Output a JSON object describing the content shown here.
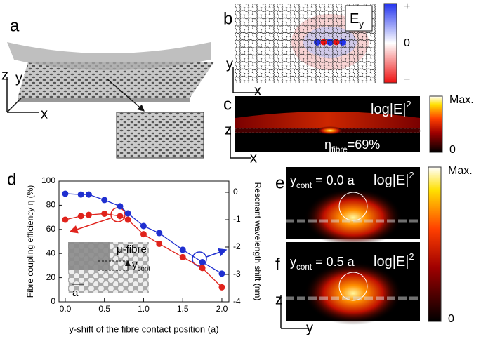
{
  "panel_labels": [
    "a",
    "b",
    "c",
    "d",
    "e",
    "f"
  ],
  "panel_a": {
    "axes": [
      "z",
      "y",
      "x"
    ]
  },
  "panel_b": {
    "field": {
      "main": "E",
      "sub": "y"
    },
    "colorbar": [
      "+",
      "0",
      "−"
    ],
    "axes": [
      "y",
      "x"
    ]
  },
  "panel_c": {
    "title": {
      "main": "log|E|",
      "sup": "2"
    },
    "efficiency": {
      "main": "η",
      "sub": "fibre",
      "rest": "=69%"
    },
    "colorbar": [
      "Max.",
      "0"
    ],
    "axes": [
      "z",
      "x"
    ]
  },
  "panel_ef": {
    "title": {
      "main": "log|E|",
      "sup": "2"
    },
    "colorbar": [
      "Max.",
      "0"
    ],
    "axes": [
      "z",
      "y"
    ],
    "e_label": {
      "main": "y",
      "sub": "cont",
      "rest": " = 0.0 a"
    },
    "f_label": {
      "main": "y",
      "sub": "cont",
      "rest": " = 0.5 a"
    }
  },
  "chart_data": {
    "type": "line",
    "xlabel": "y-shift of the fibre contact position (a)",
    "ylabel": "Fibre coupling efficiency η (%)",
    "y2label": "Resonant wavelength shift (nm)",
    "inset": {
      "fibre": "μ-fibre",
      "y": {
        "main": "y",
        "sub": "cont"
      },
      "a": "a"
    },
    "x": [
      0,
      0.2,
      0.3,
      0.5,
      0.7,
      0.8,
      1.0,
      1.2,
      1.5,
      1.75,
      2.0
    ],
    "series": [
      {
        "color": "#e0231c",
        "axis": "y",
        "values": [
          68,
          71,
          72,
          73,
          71,
          68,
          56,
          48,
          37,
          28,
          12
        ]
      },
      {
        "color": "#1f2fd0",
        "axis": "y2",
        "values": [
          -0.05,
          -0.08,
          -0.08,
          -0.28,
          -0.51,
          -0.77,
          -1.23,
          -1.49,
          -2.1,
          -2.55,
          -2.97
        ]
      }
    ],
    "xlim": [
      -0.08,
      2.09
    ],
    "xticks": [
      {
        "value": 0,
        "label": "0.0"
      },
      0.5,
      {
        "value": 1,
        "label": "1.0"
      },
      1.5,
      {
        "value": 2,
        "label": "2.0"
      }
    ],
    "ylim": [
      0,
      100
    ],
    "yticks": [
      0,
      20,
      40,
      60,
      80,
      100
    ],
    "y2lim": [
      -4,
      0.41
    ],
    "y2ticks": [
      0,
      -1,
      -2,
      -3,
      -4
    ]
  }
}
